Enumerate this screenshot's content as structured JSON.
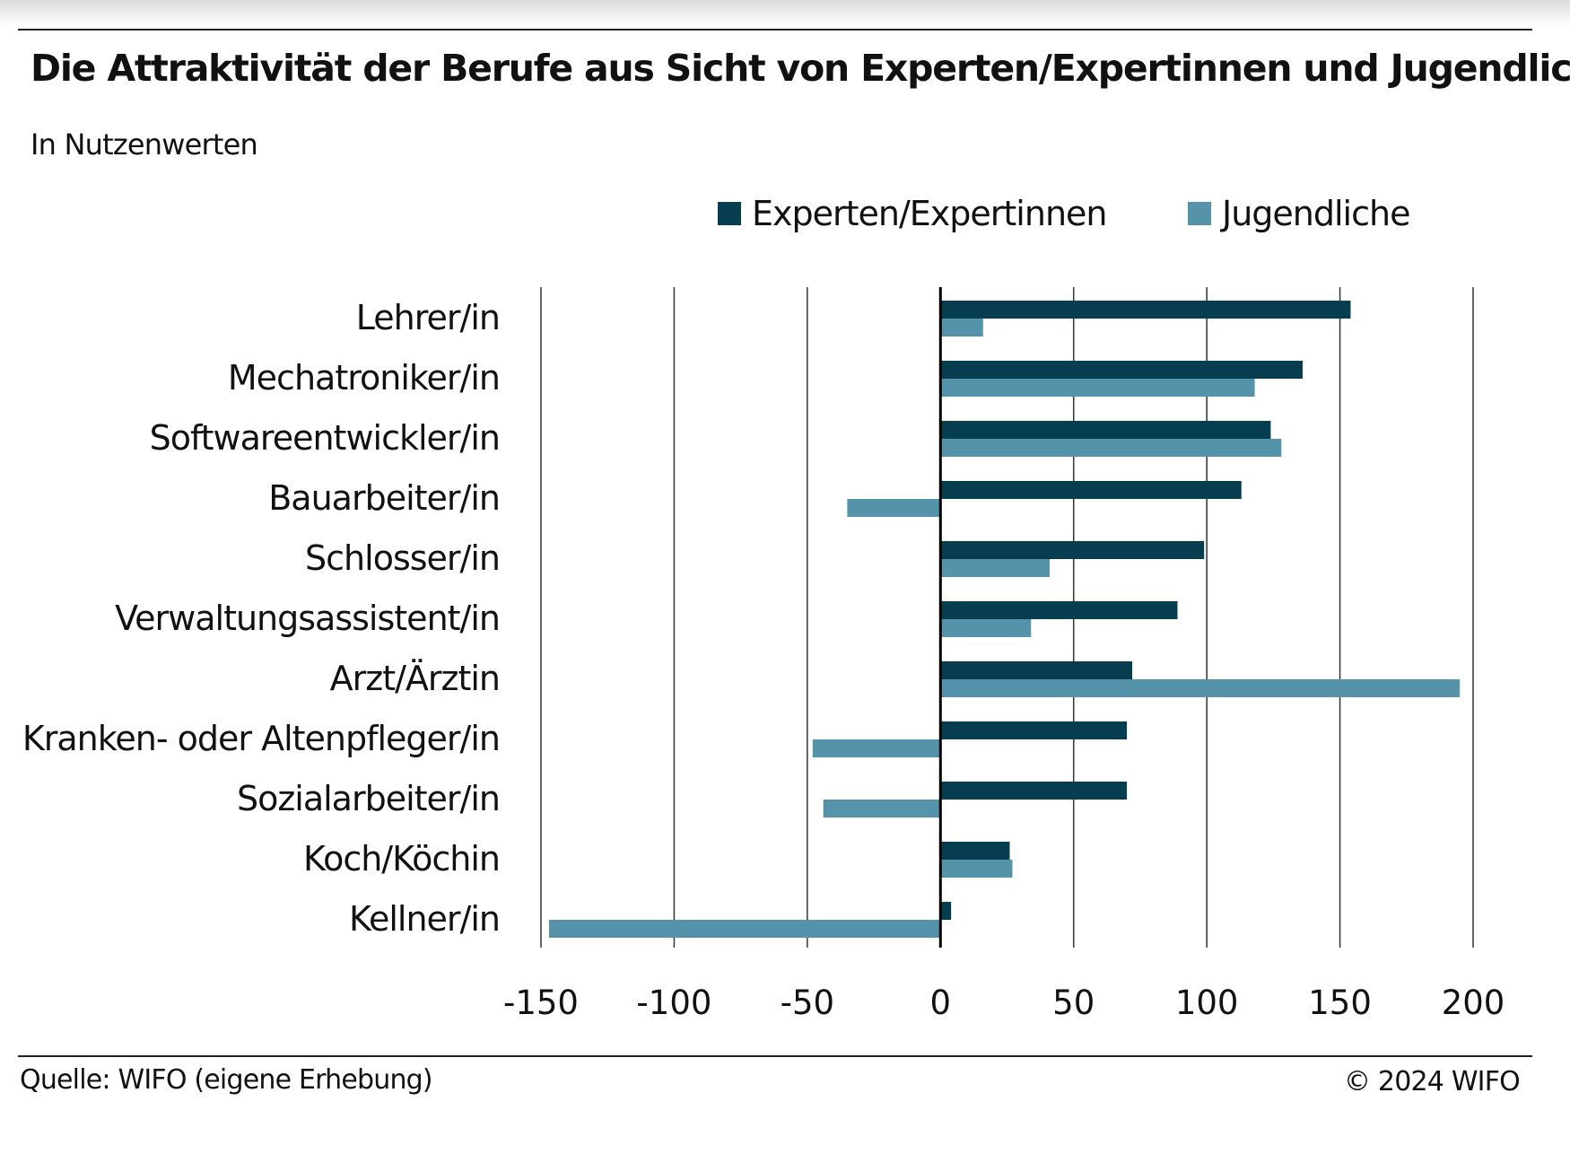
{
  "header": {
    "title": "Die Attraktivität der Berufe aus Sicht von Experten/Expertinnen und Jugendlichen",
    "subtitle": "In Nutzenwerten"
  },
  "footer": {
    "source": "Quelle: WIFO (eigene Erhebung)",
    "copyright": "© 2024 WIFO"
  },
  "colors": {
    "experten": "#063d4f",
    "jugendliche": "#5493a9",
    "grid": "#333333"
  },
  "chart_data": {
    "type": "bar",
    "orientation": "horizontal",
    "title": "Die Attraktivität der Berufe aus Sicht von Experten/Expertinnen und Jugendlichen",
    "subtitle": "In Nutzenwerten",
    "categories": [
      "Lehrer/in",
      "Mechatroniker/in",
      "Softwareentwickler/in",
      "Bauarbeiter/in",
      "Schlosser/in",
      "Verwaltungsassistent/in",
      "Arzt/Ärztin",
      "Kranken- oder Altenpfleger/in",
      "Sozialarbeiter/in",
      "Koch/Köchin",
      "Kellner/in"
    ],
    "series": [
      {
        "name": "Experten/Expertinnen",
        "values": [
          154,
          136,
          124,
          113,
          99,
          89,
          72,
          70,
          70,
          26,
          4
        ]
      },
      {
        "name": "Jugendliche",
        "values": [
          16,
          118,
          128,
          -35,
          41,
          34,
          195,
          -48,
          -44,
          27,
          -147
        ]
      }
    ],
    "xlim": [
      -150,
      200
    ],
    "xticks": [
      "-150",
      "-100",
      "-50",
      "0",
      "50",
      "100",
      "150",
      "200"
    ],
    "grid": "vertical",
    "legend": "top-right"
  }
}
